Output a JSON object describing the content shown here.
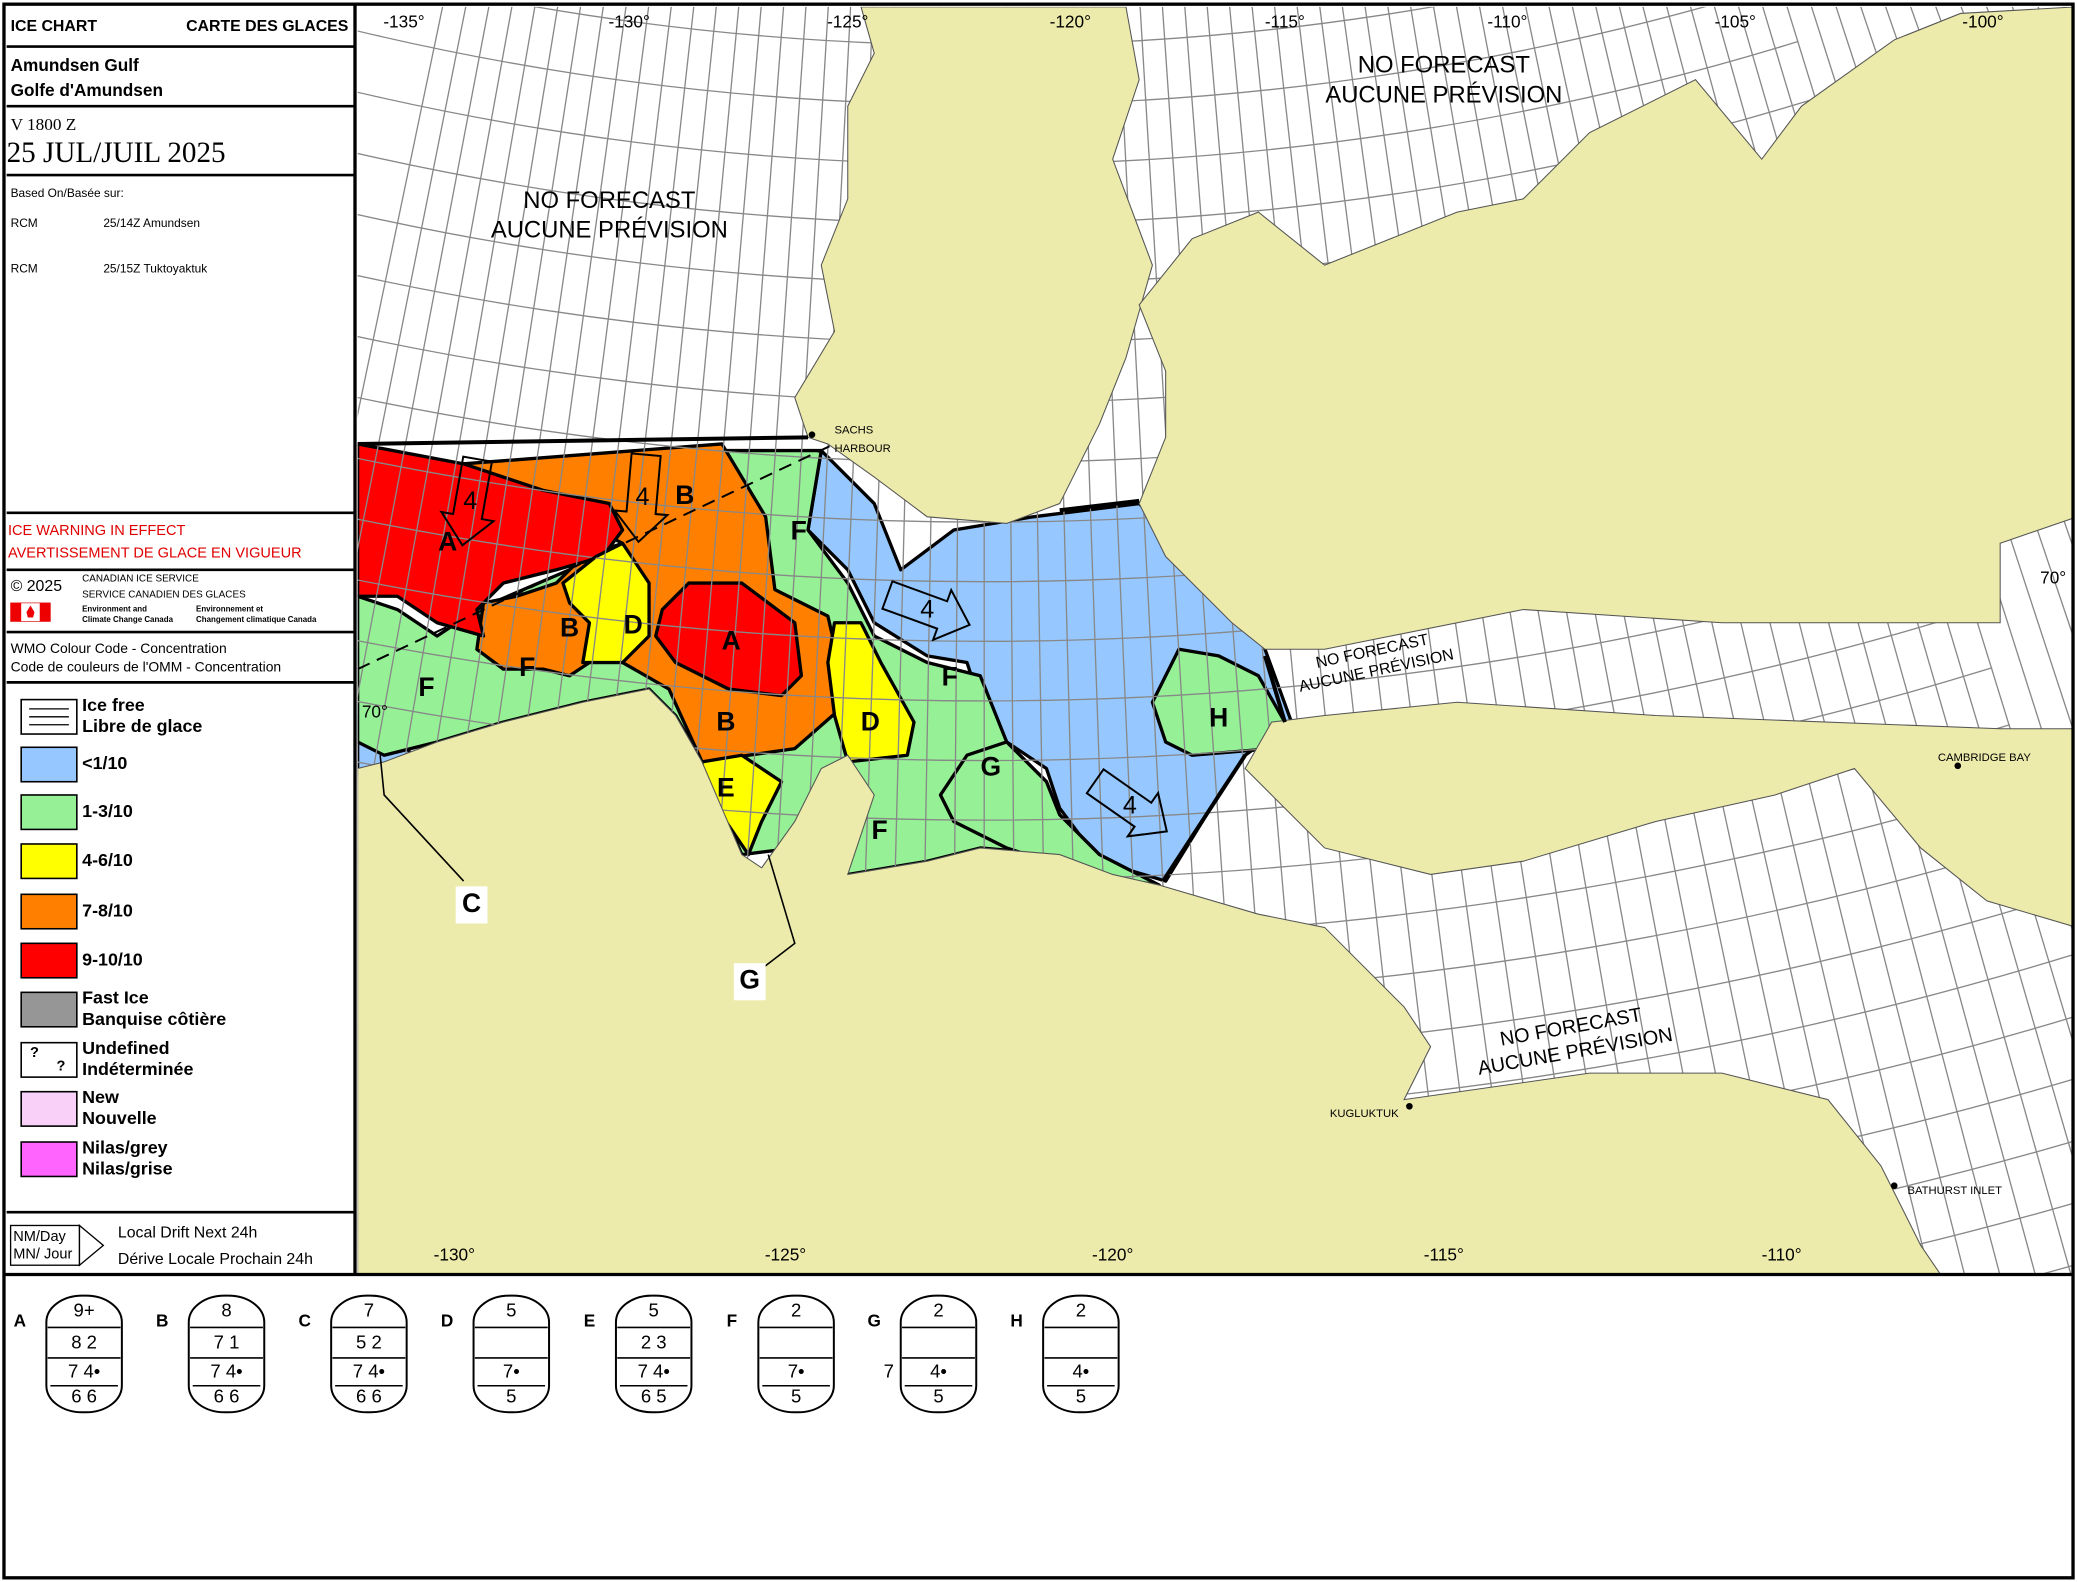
{
  "header": {
    "title_en": "ICE CHART",
    "title_fr": "CARTE DES GLACES",
    "region_en": "Amundsen Gulf",
    "region_fr": "Golfe d'Amundsen",
    "valid_time": "V 1800 Z",
    "date": "25 JUL/JUIL 2025",
    "based_on": "Based On/Basée sur:",
    "sources": [
      {
        "sensor": "RCM",
        "detail": "25/14Z Amundsen"
      },
      {
        "sensor": "RCM",
        "detail": "25/15Z Tuktoyaktuk"
      }
    ]
  },
  "warning": {
    "en": "ICE WARNING IN EFFECT",
    "fr": "AVERTISSEMENT DE GLACE EN VIGUEUR"
  },
  "credits": {
    "copyright": "© 2025",
    "agency_en": "CANADIAN ICE SERVICE",
    "agency_fr": "SERVICE CANADIEN DES GLACES",
    "dept_en": [
      "Environment and",
      "Climate Change Canada"
    ],
    "dept_fr": [
      "Environnement et",
      "Changement climatique Canada"
    ]
  },
  "legend": {
    "title_en": "WMO Colour Code - Concentration",
    "title_fr": "Code de couleurs de l'OMM - Concentration",
    "items": [
      {
        "label": [
          "Ice free",
          "Libre de glace"
        ],
        "color": "#ffffff"
      },
      {
        "label": [
          "<1/10"
        ],
        "color": "#96c8ff"
      },
      {
        "label": [
          "1-3/10"
        ],
        "color": "#96f096"
      },
      {
        "label": [
          "4-6/10"
        ],
        "color": "#ffff00"
      },
      {
        "label": [
          "7-8/10"
        ],
        "color": "#ff8000"
      },
      {
        "label": [
          "9-10/10"
        ],
        "color": "#ff0000"
      },
      {
        "label": [
          "Fast Ice",
          "Banquise côtière"
        ],
        "color": "#969696"
      },
      {
        "label": [
          "Undefined",
          "Indéterminée"
        ],
        "color": "#ffffff",
        "symbol": [
          "?",
          "?"
        ]
      },
      {
        "label": [
          "New",
          "Nouvelle"
        ],
        "color": "#f8d0f8"
      },
      {
        "label": [
          "Nilas/grey",
          "Nilas/grise"
        ],
        "color": "#ff64ff"
      }
    ]
  },
  "drift": {
    "unit_en": "NM/Day",
    "unit_fr": "MN/ Jour",
    "label_en": "Local Drift Next 24h",
    "label_fr": "Dérive Locale Prochain 24h"
  },
  "map": {
    "lon_top": [
      "-135°",
      "-130°",
      "-125°",
      "-120°",
      "-115°",
      "-110°",
      "-105°",
      "-100°"
    ],
    "lon_bottom": [
      "-130°",
      "-125°",
      "-120°",
      "-115°",
      "-110°"
    ],
    "lat": [
      "70°",
      "70°"
    ],
    "no_forecast": [
      [
        "NO FORECAST",
        "AUCUNE PRÉVISION"
      ],
      [
        "NO FORECAST",
        "AUCUNE PRÉVISION"
      ],
      [
        "NO FORECAST",
        "AUCUNE PRÉVISION"
      ],
      [
        "NO FORECAST",
        "AUCUNE PRÉVISION"
      ]
    ],
    "places": [
      [
        "SACHS",
        "HARBOUR"
      ],
      [
        "CAMBRIDGE BAY"
      ],
      [
        "KUGLUKTUK"
      ],
      [
        "BATHURST INLET"
      ]
    ],
    "regions": [
      "A",
      "A",
      "B",
      "B",
      "B",
      "D",
      "D",
      "E",
      "F",
      "F",
      "F",
      "F",
      "F",
      "G",
      "H"
    ],
    "callouts": [
      "C",
      "G"
    ],
    "drift_speeds": [
      4,
      4,
      4,
      4
    ]
  },
  "egg_codes": [
    {
      "label": "A",
      "total": "9+",
      "partials": "8 2",
      "stage": "7 4•",
      "form": "6 6"
    },
    {
      "label": "B",
      "total": "8",
      "partials": "7 1",
      "stage": "7 4•",
      "form": "6 6"
    },
    {
      "label": "C",
      "total": "7",
      "partials": "5 2",
      "stage": "7 4•",
      "form": "6 6"
    },
    {
      "label": "D",
      "total": "5",
      "stage": "7•",
      "form": "5"
    },
    {
      "label": "E",
      "total": "5",
      "partials": "2 3",
      "stage": "7 4•",
      "form": "6 5"
    },
    {
      "label": "F",
      "total": "2",
      "stage": "7•",
      "form": "5"
    },
    {
      "label": "G",
      "total": "2",
      "stage": "4•",
      "form": "5",
      "extra": "7"
    },
    {
      "label": "H",
      "total": "2",
      "stage": "4•",
      "form": "5"
    }
  ]
}
